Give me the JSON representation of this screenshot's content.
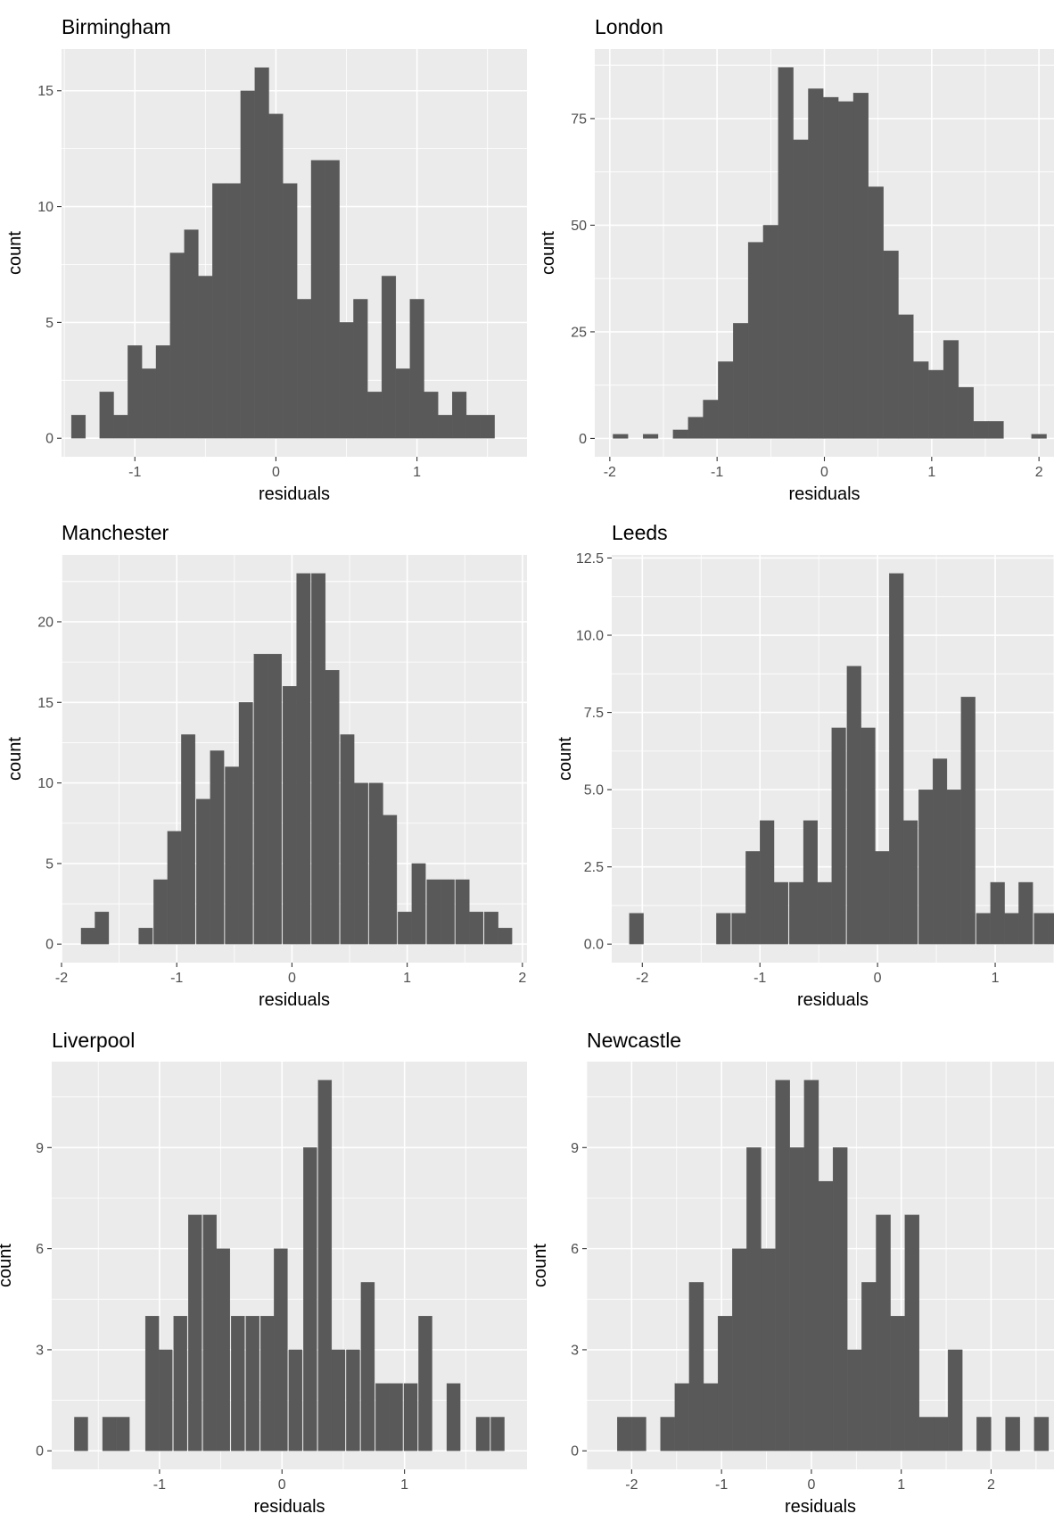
{
  "chart_data": [
    {
      "type": "bar",
      "title": "Birmingham",
      "xlabel": "residuals",
      "ylabel": "count",
      "xlim": [
        -1.52,
        1.78
      ],
      "ylim": [
        -0.8,
        16.8
      ],
      "xticks": [
        "-1",
        "0",
        "1"
      ],
      "yticks": [
        "0",
        "5",
        "10",
        "15"
      ],
      "grid": true,
      "bins": [
        {
          "x": -1.4,
          "y": 1
        },
        {
          "x": -1.2,
          "y": 2
        },
        {
          "x": -1.1,
          "y": 1
        },
        {
          "x": -1.0,
          "y": 4
        },
        {
          "x": -0.9,
          "y": 3
        },
        {
          "x": -0.8,
          "y": 4
        },
        {
          "x": -0.7,
          "y": 8
        },
        {
          "x": -0.6,
          "y": 9
        },
        {
          "x": -0.5,
          "y": 7
        },
        {
          "x": -0.4,
          "y": 11
        },
        {
          "x": -0.3,
          "y": 11
        },
        {
          "x": -0.2,
          "y": 15
        },
        {
          "x": -0.1,
          "y": 16
        },
        {
          "x": 0.0,
          "y": 14
        },
        {
          "x": 0.1,
          "y": 11
        },
        {
          "x": 0.2,
          "y": 6
        },
        {
          "x": 0.3,
          "y": 12
        },
        {
          "x": 0.4,
          "y": 12
        },
        {
          "x": 0.5,
          "y": 5
        },
        {
          "x": 0.6,
          "y": 6
        },
        {
          "x": 0.7,
          "y": 2
        },
        {
          "x": 0.8,
          "y": 7
        },
        {
          "x": 0.9,
          "y": 3
        },
        {
          "x": 1.0,
          "y": 6
        },
        {
          "x": 1.1,
          "y": 2
        },
        {
          "x": 1.2,
          "y": 1
        },
        {
          "x": 1.3,
          "y": 2
        },
        {
          "x": 1.4,
          "y": 1
        },
        {
          "x": 1.5,
          "y": 1
        }
      ]
    },
    {
      "type": "bar",
      "title": "London",
      "xlabel": "residuals",
      "ylabel": "count",
      "xlim": [
        -2.14,
        2.14
      ],
      "ylim": [
        -4.3,
        91.3
      ],
      "xticks": [
        "-2",
        "-1",
        "0",
        "1",
        "2"
      ],
      "yticks": [
        "0",
        "25",
        "50",
        "75"
      ],
      "grid": true,
      "bins": [
        {
          "x": -1.9,
          "y": 1
        },
        {
          "x": -1.62,
          "y": 1
        },
        {
          "x": -1.34,
          "y": 2
        },
        {
          "x": -1.2,
          "y": 5
        },
        {
          "x": -1.06,
          "y": 9
        },
        {
          "x": -0.92,
          "y": 18
        },
        {
          "x": -0.78,
          "y": 27
        },
        {
          "x": -0.64,
          "y": 46
        },
        {
          "x": -0.5,
          "y": 50
        },
        {
          "x": -0.36,
          "y": 87
        },
        {
          "x": -0.22,
          "y": 70
        },
        {
          "x": -0.08,
          "y": 82
        },
        {
          "x": 0.06,
          "y": 80
        },
        {
          "x": 0.2,
          "y": 79
        },
        {
          "x": 0.34,
          "y": 81
        },
        {
          "x": 0.48,
          "y": 59
        },
        {
          "x": 0.62,
          "y": 44
        },
        {
          "x": 0.76,
          "y": 29
        },
        {
          "x": 0.9,
          "y": 18
        },
        {
          "x": 1.04,
          "y": 16
        },
        {
          "x": 1.18,
          "y": 23
        },
        {
          "x": 1.32,
          "y": 12
        },
        {
          "x": 1.46,
          "y": 4
        },
        {
          "x": 1.6,
          "y": 4
        },
        {
          "x": 2.0,
          "y": 1
        }
      ]
    },
    {
      "type": "bar",
      "title": "Manchester",
      "xlabel": "residuals",
      "ylabel": "count",
      "xlim": [
        -2.0,
        2.04
      ],
      "ylim": [
        -1.15,
        24.15
      ],
      "xticks": [
        "-2",
        "-1",
        "0",
        "1",
        "2"
      ],
      "yticks": [
        "0",
        "5",
        "10",
        "15",
        "20"
      ],
      "grid": true,
      "bins": [
        {
          "x": -1.77,
          "y": 1
        },
        {
          "x": -1.65,
          "y": 2
        },
        {
          "x": -1.27,
          "y": 1
        },
        {
          "x": -1.14,
          "y": 4
        },
        {
          "x": -1.02,
          "y": 7
        },
        {
          "x": -0.9,
          "y": 13
        },
        {
          "x": -0.77,
          "y": 9
        },
        {
          "x": -0.65,
          "y": 12
        },
        {
          "x": -0.52,
          "y": 11
        },
        {
          "x": -0.4,
          "y": 15
        },
        {
          "x": -0.27,
          "y": 18
        },
        {
          "x": -0.15,
          "y": 18
        },
        {
          "x": -0.02,
          "y": 16
        },
        {
          "x": 0.1,
          "y": 23
        },
        {
          "x": 0.23,
          "y": 23
        },
        {
          "x": 0.35,
          "y": 17
        },
        {
          "x": 0.48,
          "y": 13
        },
        {
          "x": 0.6,
          "y": 10
        },
        {
          "x": 0.73,
          "y": 10
        },
        {
          "x": 0.85,
          "y": 8
        },
        {
          "x": 0.98,
          "y": 2
        },
        {
          "x": 1.1,
          "y": 5
        },
        {
          "x": 1.23,
          "y": 4
        },
        {
          "x": 1.35,
          "y": 4
        },
        {
          "x": 1.48,
          "y": 4
        },
        {
          "x": 1.6,
          "y": 2
        },
        {
          "x": 1.73,
          "y": 2
        },
        {
          "x": 1.85,
          "y": 1
        }
      ]
    },
    {
      "type": "bar",
      "title": "Leeds",
      "xlabel": "residuals",
      "ylabel": "count",
      "xlim": [
        -2.26,
        1.5
      ],
      "ylim": [
        -0.6,
        12.6
      ],
      "xticks": [
        "-2",
        "-1",
        "0",
        "1"
      ],
      "yticks": [
        "0.0",
        "2.5",
        "5.0",
        "7.5",
        "10.0",
        "12.5"
      ],
      "grid": true,
      "bins": [
        {
          "x": -2.05,
          "y": 1
        },
        {
          "x": -1.31,
          "y": 1
        },
        {
          "x": -1.18,
          "y": 1
        },
        {
          "x": -1.06,
          "y": 3
        },
        {
          "x": -0.94,
          "y": 4
        },
        {
          "x": -0.82,
          "y": 2
        },
        {
          "x": -0.69,
          "y": 2
        },
        {
          "x": -0.57,
          "y": 4
        },
        {
          "x": -0.45,
          "y": 2
        },
        {
          "x": -0.33,
          "y": 7
        },
        {
          "x": -0.2,
          "y": 9
        },
        {
          "x": -0.08,
          "y": 7
        },
        {
          "x": 0.04,
          "y": 3
        },
        {
          "x": 0.16,
          "y": 12
        },
        {
          "x": 0.28,
          "y": 4
        },
        {
          "x": 0.41,
          "y": 5
        },
        {
          "x": 0.53,
          "y": 6
        },
        {
          "x": 0.65,
          "y": 5
        },
        {
          "x": 0.77,
          "y": 8
        },
        {
          "x": 0.9,
          "y": 1
        },
        {
          "x": 1.02,
          "y": 2
        },
        {
          "x": 1.14,
          "y": 1
        },
        {
          "x": 1.26,
          "y": 2
        },
        {
          "x": 1.39,
          "y": 1
        },
        {
          "x": 1.51,
          "y": 1
        }
      ]
    },
    {
      "type": "bar",
      "title": "Liverpool",
      "xlabel": "residuals",
      "ylabel": "count",
      "xlim": [
        -1.88,
        2.0
      ],
      "ylim": [
        -0.55,
        11.55
      ],
      "xticks": [
        "-1",
        "0",
        "1"
      ],
      "yticks": [
        "0",
        "3",
        "6",
        "9"
      ],
      "grid": true,
      "bins": [
        {
          "x": -1.64,
          "y": 1
        },
        {
          "x": -1.41,
          "y": 1
        },
        {
          "x": -1.3,
          "y": 1
        },
        {
          "x": -1.06,
          "y": 4
        },
        {
          "x": -0.95,
          "y": 3
        },
        {
          "x": -0.83,
          "y": 4
        },
        {
          "x": -0.71,
          "y": 7
        },
        {
          "x": -0.59,
          "y": 7
        },
        {
          "x": -0.48,
          "y": 6
        },
        {
          "x": -0.36,
          "y": 4
        },
        {
          "x": -0.24,
          "y": 4
        },
        {
          "x": -0.12,
          "y": 4
        },
        {
          "x": -0.01,
          "y": 6
        },
        {
          "x": 0.11,
          "y": 3
        },
        {
          "x": 0.23,
          "y": 9
        },
        {
          "x": 0.35,
          "y": 11
        },
        {
          "x": 0.46,
          "y": 3
        },
        {
          "x": 0.58,
          "y": 3
        },
        {
          "x": 0.7,
          "y": 5
        },
        {
          "x": 0.82,
          "y": 2
        },
        {
          "x": 0.93,
          "y": 2
        },
        {
          "x": 1.05,
          "y": 2
        },
        {
          "x": 1.17,
          "y": 4
        },
        {
          "x": 1.4,
          "y": 2
        },
        {
          "x": 1.64,
          "y": 1
        },
        {
          "x": 1.76,
          "y": 1
        }
      ]
    },
    {
      "type": "bar",
      "title": "Newcastle",
      "xlabel": "residuals",
      "ylabel": "count",
      "xlim": [
        -2.5,
        2.7
      ],
      "ylim": [
        -0.55,
        11.55
      ],
      "xticks": [
        "-2",
        "-1",
        "0",
        "1",
        "2"
      ],
      "yticks": [
        "0",
        "3",
        "6",
        "9"
      ],
      "grid": true,
      "bins": [
        {
          "x": -2.08,
          "y": 1
        },
        {
          "x": -1.92,
          "y": 1
        },
        {
          "x": -1.6,
          "y": 1
        },
        {
          "x": -1.44,
          "y": 2
        },
        {
          "x": -1.28,
          "y": 5
        },
        {
          "x": -1.12,
          "y": 2
        },
        {
          "x": -0.96,
          "y": 4
        },
        {
          "x": -0.8,
          "y": 6
        },
        {
          "x": -0.64,
          "y": 9
        },
        {
          "x": -0.48,
          "y": 6
        },
        {
          "x": -0.32,
          "y": 11
        },
        {
          "x": -0.16,
          "y": 9
        },
        {
          "x": 0.0,
          "y": 11
        },
        {
          "x": 0.16,
          "y": 8
        },
        {
          "x": 0.32,
          "y": 9
        },
        {
          "x": 0.48,
          "y": 3
        },
        {
          "x": 0.64,
          "y": 5
        },
        {
          "x": 0.8,
          "y": 7
        },
        {
          "x": 0.96,
          "y": 4
        },
        {
          "x": 1.12,
          "y": 7
        },
        {
          "x": 1.28,
          "y": 1
        },
        {
          "x": 1.44,
          "y": 1
        },
        {
          "x": 1.6,
          "y": 3
        },
        {
          "x": 1.92,
          "y": 1
        },
        {
          "x": 2.24,
          "y": 1
        },
        {
          "x": 2.56,
          "y": 1
        }
      ]
    }
  ]
}
